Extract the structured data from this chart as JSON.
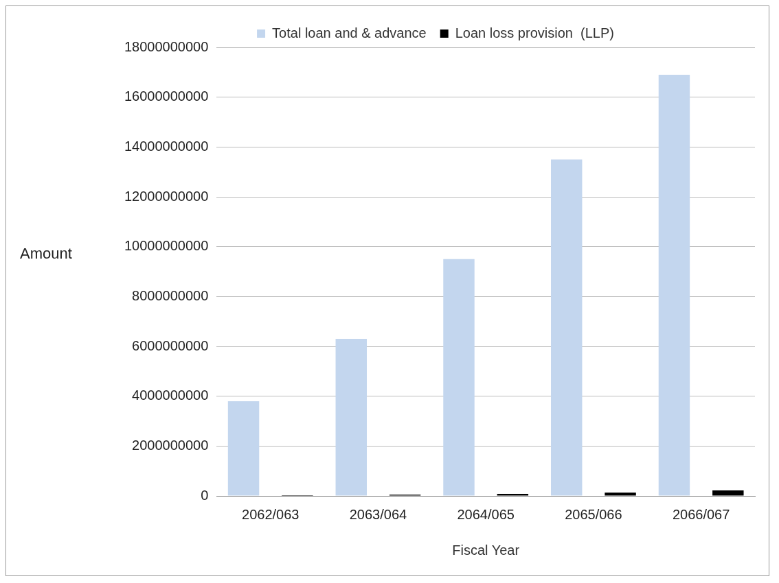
{
  "chart_data": {
    "type": "bar",
    "xlabel": "Fiscal Year",
    "ylabel": "Amount",
    "categories": [
      "2062/063",
      "2063/064",
      "2064/065",
      "2065/066",
      "2066/067"
    ],
    "series": [
      {
        "name": "Total loan and & advance",
        "color": "#c3d6ee",
        "values": [
          3800000000,
          6300000000,
          9500000000,
          13500000000,
          16900000000
        ]
      },
      {
        "name": "Loan loss provision  (LLP)",
        "color": "#000000",
        "values": [
          30000000,
          50000000,
          80000000,
          130000000,
          220000000
        ]
      }
    ],
    "ylim": [
      0,
      18000000000
    ],
    "yticks": [
      0,
      2000000000,
      4000000000,
      6000000000,
      8000000000,
      10000000000,
      12000000000,
      14000000000,
      16000000000,
      18000000000
    ],
    "grid": "y",
    "legend": "top"
  }
}
